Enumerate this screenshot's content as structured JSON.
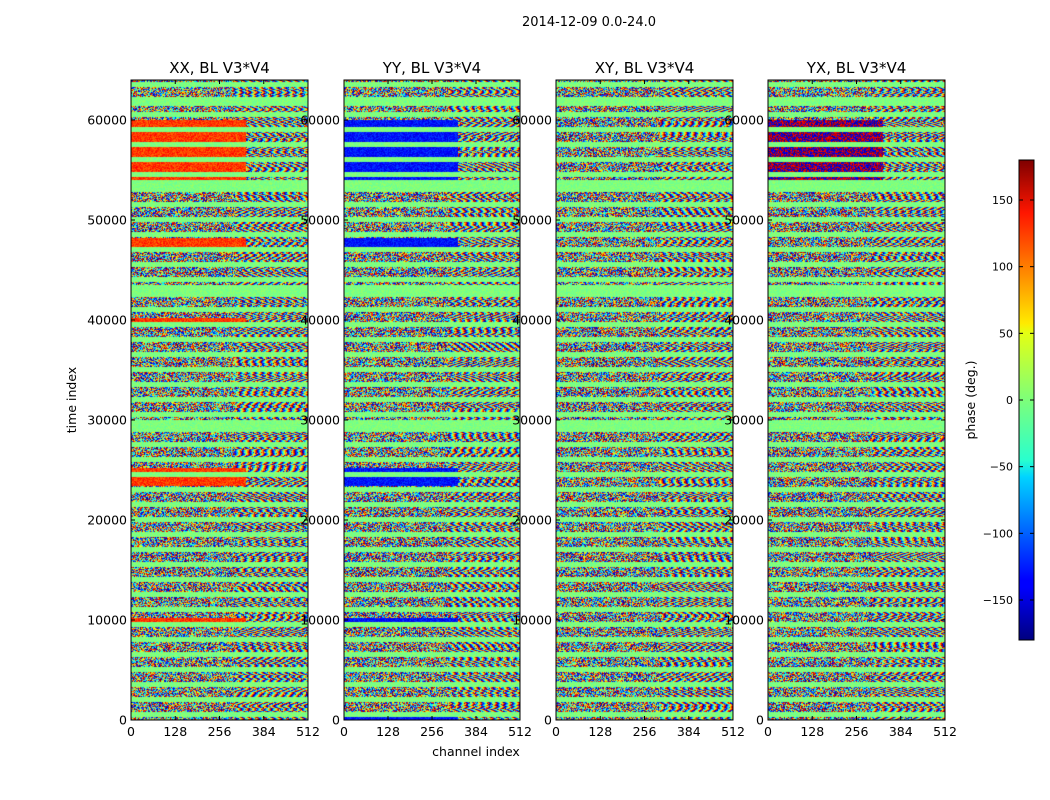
{
  "suptitle": "2014-12-09 0.0-24.0",
  "chart_data": [
    {
      "type": "heatmap",
      "title": "XX, BL V3*V4",
      "xlabel": "channel index",
      "ylabel": "time index",
      "xlim": [
        0,
        512
      ],
      "ylim": [
        0,
        64000
      ],
      "xticks": [
        0,
        128,
        256,
        384,
        512
      ],
      "yticks": [
        0,
        10000,
        20000,
        30000,
        40000,
        50000,
        60000
      ],
      "band_phase": 115,
      "bands": [
        [
          54000,
          60000
        ],
        [
          47200,
          48200
        ],
        [
          39500,
          40200
        ],
        [
          23500,
          25200
        ],
        [
          9500,
          10200
        ]
      ],
      "band_x_end": 330
    },
    {
      "type": "heatmap",
      "title": "YY, BL V3*V4",
      "xlim": [
        0,
        512
      ],
      "ylim": [
        0,
        64000
      ],
      "xticks": [
        0,
        128,
        256,
        384,
        512
      ],
      "yticks": [
        0,
        10000,
        20000,
        30000,
        40000,
        50000,
        60000
      ],
      "band_phase": -130,
      "bands": [
        [
          54000,
          60000
        ],
        [
          47200,
          48200
        ],
        [
          23500,
          25200
        ],
        [
          9500,
          10200
        ],
        [
          0,
          800
        ]
      ],
      "band_x_end": 330
    },
    {
      "type": "heatmap",
      "title": "XY, BL V3*V4",
      "xlim": [
        0,
        512
      ],
      "ylim": [
        0,
        64000
      ],
      "xticks": [
        0,
        128,
        256,
        384,
        512
      ],
      "yticks": [
        0,
        10000,
        20000,
        30000,
        40000,
        50000,
        60000
      ],
      "bands": []
    },
    {
      "type": "heatmap",
      "title": "YX, BL V3*V4",
      "xlim": [
        0,
        512
      ],
      "ylim": [
        0,
        64000
      ],
      "xticks": [
        0,
        128,
        256,
        384,
        512
      ],
      "yticks": [
        0,
        10000,
        20000,
        30000,
        40000,
        50000,
        60000
      ],
      "bands": [],
      "mixed_region": [
        54000,
        60000
      ]
    }
  ],
  "colorbar": {
    "label": "phase (deg.)",
    "range": [
      -180,
      180
    ],
    "ticks": [
      150,
      100,
      50,
      0,
      -50,
      -100,
      -150
    ],
    "tick_labels": [
      "150",
      "100",
      "50",
      "0",
      "−50",
      "−100",
      "−150"
    ],
    "colormap": "jet"
  }
}
